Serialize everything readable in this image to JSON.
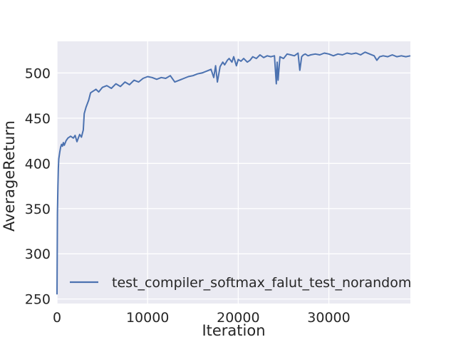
{
  "chart_data": {
    "type": "line",
    "title": "",
    "xlabel": "Iteration",
    "ylabel": "AverageReturn",
    "xlim": [
      0,
      39000
    ],
    "ylim": [
      245,
      535
    ],
    "x_ticks": [
      0,
      10000,
      20000,
      30000
    ],
    "x_tick_labels": [
      "0",
      "10000",
      "20000",
      "30000"
    ],
    "y_ticks": [
      250,
      300,
      350,
      400,
      450,
      500
    ],
    "y_tick_labels": [
      "250",
      "300",
      "350",
      "400",
      "450",
      "500"
    ],
    "grid": true,
    "legend_position": "lower-right",
    "colors": {
      "line": "#4c72b0",
      "background": "#eaeaf2",
      "grid": "#ffffff"
    },
    "series": [
      {
        "name": "test_compiler_softmax_falut_test_norandom",
        "x": [
          0,
          20,
          50,
          100,
          150,
          200,
          300,
          400,
          500,
          600,
          700,
          800,
          1000,
          1200,
          1500,
          1800,
          2000,
          2200,
          2500,
          2700,
          2900,
          3000,
          3200,
          3500,
          3700,
          4000,
          4300,
          4600,
          5000,
          5500,
          6000,
          6500,
          7000,
          7500,
          8000,
          8500,
          9000,
          9500,
          10000,
          10500,
          11000,
          11500,
          12000,
          12500,
          13000,
          13500,
          14000,
          14500,
          15000,
          15500,
          16000,
          16500,
          17000,
          17300,
          17500,
          17700,
          18000,
          18300,
          18500,
          18800,
          19000,
          19300,
          19500,
          19800,
          20000,
          20300,
          20600,
          21000,
          21300,
          21600,
          22000,
          22400,
          22800,
          23200,
          23600,
          24000,
          24200,
          24300,
          24400,
          24600,
          25000,
          25400,
          25800,
          26200,
          26600,
          26800,
          27000,
          27200,
          27400,
          27700,
          28000,
          28500,
          29000,
          29500,
          30000,
          30500,
          31000,
          31500,
          32000,
          32500,
          33000,
          33500,
          34000,
          34500,
          35000,
          35300,
          35600,
          36000,
          36500,
          37000,
          37500,
          38000,
          38500,
          39000
        ],
        "values": [
          255,
          300,
          345,
          375,
          395,
          405,
          412,
          418,
          421,
          419,
          423,
          420,
          425,
          428,
          430,
          428,
          431,
          424,
          432,
          429,
          437,
          455,
          462,
          470,
          478,
          480,
          482,
          479,
          484,
          486,
          483,
          488,
          485,
          490,
          487,
          492,
          490,
          494,
          496,
          495,
          493,
          495,
          494,
          497,
          490,
          492,
          494,
          496,
          497,
          499,
          500,
          502,
          504,
          495,
          508,
          490,
          507,
          512,
          509,
          514,
          516,
          512,
          518,
          508,
          515,
          513,
          516,
          512,
          514,
          518,
          516,
          520,
          517,
          519,
          518,
          519,
          488,
          512,
          492,
          518,
          516,
          521,
          520,
          519,
          522,
          503,
          518,
          520,
          521,
          519,
          520,
          521,
          520,
          522,
          521,
          519,
          521,
          520,
          522,
          521,
          522,
          520,
          523,
          521,
          519,
          514,
          518,
          519,
          518,
          520,
          518,
          519,
          518,
          519
        ]
      }
    ]
  }
}
